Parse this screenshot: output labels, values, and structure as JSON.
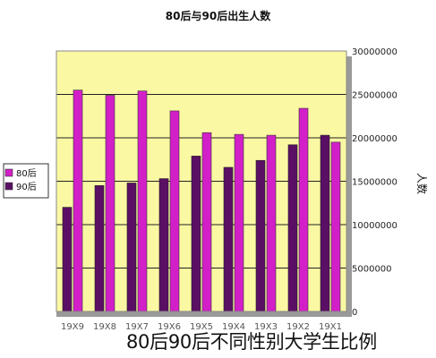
{
  "caption": "80后90后不同性别大学生比例",
  "chart_data": {
    "type": "bar",
    "orientation": "mirrored-horizontally",
    "title": "80后与90后出生人数",
    "ylabel": "人数",
    "xlabel": "",
    "categories": [
      "19X1",
      "19X2",
      "19X3",
      "19X4",
      "19X5",
      "19X6",
      "19X7",
      "19X8",
      "19X9"
    ],
    "yticks": [
      "0",
      "5000000",
      "10000000",
      "15000000",
      "20000000",
      "25000000",
      "30000000"
    ],
    "ylim": [
      0,
      30000000
    ],
    "series": [
      {
        "name": "80后",
        "color": "#d21fc8",
        "values": [
          19500000,
          23400000,
          20300000,
          20400000,
          20600000,
          23100000,
          25400000,
          24900000,
          25500000
        ]
      },
      {
        "name": "90后",
        "color": "#5a0f64",
        "values": [
          20300000,
          19200000,
          17400000,
          16600000,
          17900000,
          15300000,
          14800000,
          14500000,
          12000000
        ]
      }
    ],
    "grid": true,
    "plot_background": "#fbf8a4",
    "legend_position": "left"
  }
}
